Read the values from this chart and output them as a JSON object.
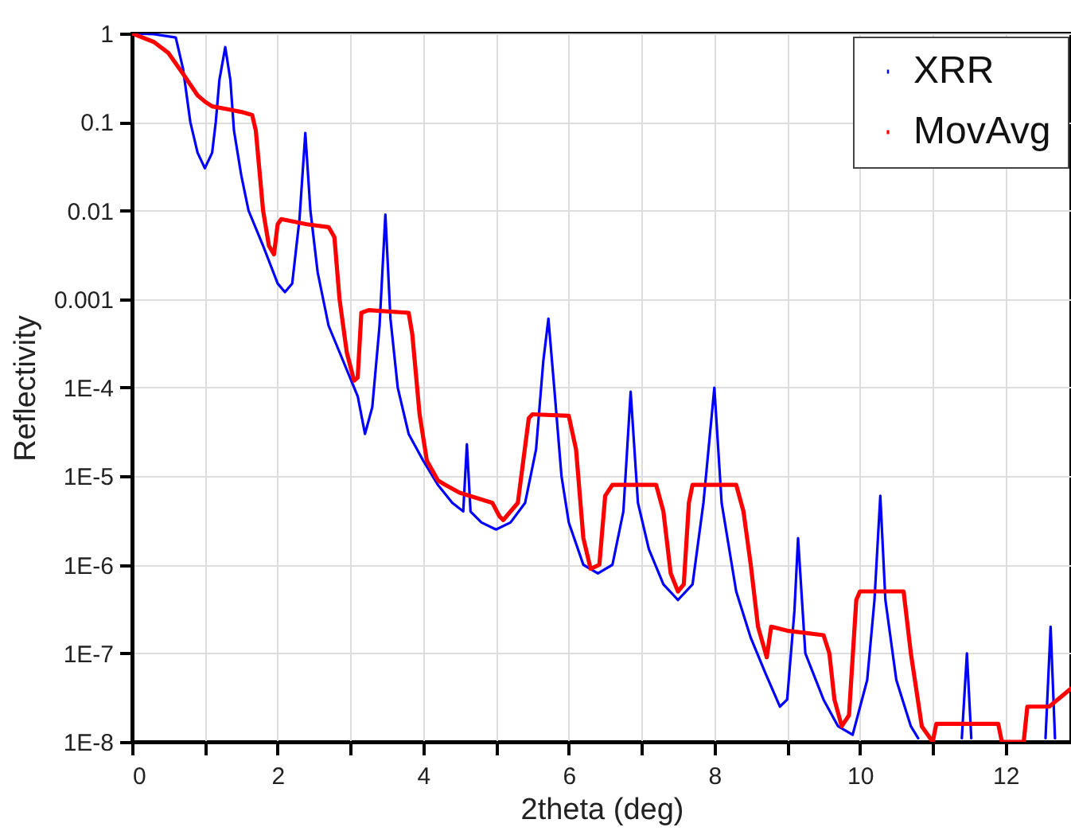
{
  "chart_data": {
    "type": "line",
    "xlabel": "2theta (deg)",
    "ylabel": "Reflectivity",
    "log": "y",
    "grid": true,
    "legend": "top right",
    "line_style": "solid",
    "marker": "none",
    "xlim": [
      0,
      12.9
    ],
    "xticks": [
      0,
      {
        "value": 1,
        "label": null
      },
      2,
      {
        "value": 3,
        "label": null
      },
      4,
      {
        "value": 5,
        "label": null
      },
      6,
      {
        "value": 7,
        "label": null
      },
      8,
      {
        "value": 9,
        "label": null
      },
      10,
      {
        "value": 11,
        "label": null
      },
      12
    ],
    "ylim": [
      1e-08,
      1
    ],
    "yticks": [
      1,
      0.1,
      0.01,
      0.001,
      {
        "value": 0.0001,
        "label": "1E-4"
      },
      {
        "value": 1e-05,
        "label": "1E-5"
      },
      {
        "value": 1e-06,
        "label": "1E-6"
      },
      {
        "value": 1e-07,
        "label": "1E-7"
      },
      {
        "value": 1e-08,
        "label": "1E-8"
      }
    ],
    "series": [
      {
        "name": "XRR",
        "color": "#0000ff",
        "x": [
          0,
          0.3,
          0.6,
          0.7,
          0.8,
          0.9,
          1.0,
          1.1,
          1.15,
          1.2,
          1.28,
          1.35,
          1.4,
          1.5,
          1.6,
          1.8,
          2.0,
          2.1,
          2.2,
          2.3,
          2.38,
          2.45,
          2.55,
          2.7,
          2.9,
          3.1,
          3.2,
          3.3,
          3.4,
          3.48,
          3.55,
          3.65,
          3.8,
          4.0,
          4.2,
          4.4,
          4.55,
          4.6,
          4.65,
          4.8,
          5.0,
          5.2,
          5.4,
          5.55,
          5.65,
          5.72,
          5.8,
          5.9,
          6.0,
          6.2,
          6.4,
          6.6,
          6.75,
          6.85,
          6.95,
          7.1,
          7.3,
          7.5,
          7.7,
          7.85,
          8.0,
          8.1,
          8.3,
          8.5,
          8.7,
          8.9,
          9.0,
          9.1,
          9.15,
          9.25,
          9.5,
          9.7,
          9.9,
          10.1,
          10.2,
          10.28,
          10.35,
          10.5,
          10.7,
          10.8,
          11.1,
          11.4,
          11.47,
          11.53,
          12.0,
          12.55,
          12.62,
          12.68
        ],
        "values": [
          1,
          0.98,
          0.9,
          0.4,
          0.1,
          0.045,
          0.03,
          0.045,
          0.1,
          0.3,
          0.7,
          0.3,
          0.08,
          0.025,
          0.01,
          0.004,
          0.0015,
          0.0012,
          0.0015,
          0.008,
          0.075,
          0.01,
          0.002,
          0.0005,
          0.0002,
          8e-05,
          3e-05,
          6e-05,
          0.0005,
          0.009,
          0.0006,
          0.0001,
          3e-05,
          1.5e-05,
          8e-06,
          5e-06,
          4e-06,
          2.3e-05,
          4e-06,
          3e-06,
          2.5e-06,
          3e-06,
          5e-06,
          2e-05,
          0.0002,
          0.0006,
          0.0001,
          1e-05,
          3e-06,
          1e-06,
          8e-07,
          1e-06,
          4e-06,
          9e-05,
          5e-06,
          1.5e-06,
          6e-07,
          4e-07,
          6e-07,
          5e-06,
          0.0001,
          5e-06,
          5e-07,
          1.5e-07,
          6e-08,
          2.5e-08,
          3e-08,
          3e-07,
          2e-06,
          1e-07,
          3e-08,
          1.5e-08,
          1.2e-08,
          5e-08,
          4e-07,
          6e-06,
          4e-07,
          5e-08,
          1.5e-08,
          1.1e-08,
          null,
          1.1e-08,
          1e-07,
          1.1e-08,
          null,
          1.1e-08,
          2e-07,
          1.1e-08
        ]
      },
      {
        "name": "MovAvg",
        "color": "#ff0000",
        "x": [
          0,
          0.3,
          0.5,
          0.7,
          0.9,
          1.0,
          1.1,
          1.3,
          1.5,
          1.65,
          1.7,
          1.8,
          1.88,
          1.95,
          2.0,
          2.05,
          2.4,
          2.7,
          2.78,
          2.85,
          2.95,
          3.05,
          3.1,
          3.15,
          3.25,
          3.8,
          3.85,
          3.95,
          4.05,
          4.2,
          4.3,
          4.5,
          4.95,
          5.05,
          5.1,
          5.3,
          5.45,
          5.5,
          6.0,
          6.1,
          6.2,
          6.3,
          6.42,
          6.5,
          6.6,
          7.2,
          7.3,
          7.4,
          7.5,
          7.58,
          7.65,
          7.7,
          8.3,
          8.4,
          8.5,
          8.6,
          8.72,
          8.78,
          9.0,
          9.5,
          9.58,
          9.65,
          9.75,
          9.85,
          9.95,
          10.0,
          10.6,
          10.7,
          10.85,
          11.0,
          11.05,
          11.1,
          11.9,
          11.95,
          12.25,
          12.3,
          12.6,
          12.9
        ],
        "values": [
          1,
          0.8,
          0.6,
          0.35,
          0.2,
          0.17,
          0.15,
          0.14,
          0.13,
          0.12,
          0.08,
          0.01,
          0.004,
          0.0032,
          0.007,
          0.008,
          0.007,
          0.0065,
          0.005,
          0.001,
          0.00025,
          0.00012,
          0.00013,
          0.0007,
          0.00075,
          0.0007,
          0.0004,
          5e-05,
          1.5e-05,
          9e-06,
          8e-06,
          6.5e-06,
          5e-06,
          3.5e-06,
          3.2e-06,
          5e-06,
          4.5e-05,
          5e-05,
          4.8e-05,
          2e-05,
          2e-06,
          9e-07,
          1e-06,
          6e-06,
          8e-06,
          8e-06,
          4e-06,
          8e-07,
          5e-07,
          6e-07,
          5e-06,
          8e-06,
          8e-06,
          4e-06,
          1e-06,
          2e-07,
          9e-08,
          2e-07,
          1.8e-07,
          1.6e-07,
          1e-07,
          3e-08,
          1.5e-08,
          2e-08,
          4e-07,
          5e-07,
          5e-07,
          1e-07,
          1.5e-08,
          1e-08,
          1.6e-08,
          1.6e-08,
          1.6e-08,
          1e-08,
          1e-08,
          2.5e-08,
          2.5e-08,
          4e-08
        ]
      }
    ]
  }
}
